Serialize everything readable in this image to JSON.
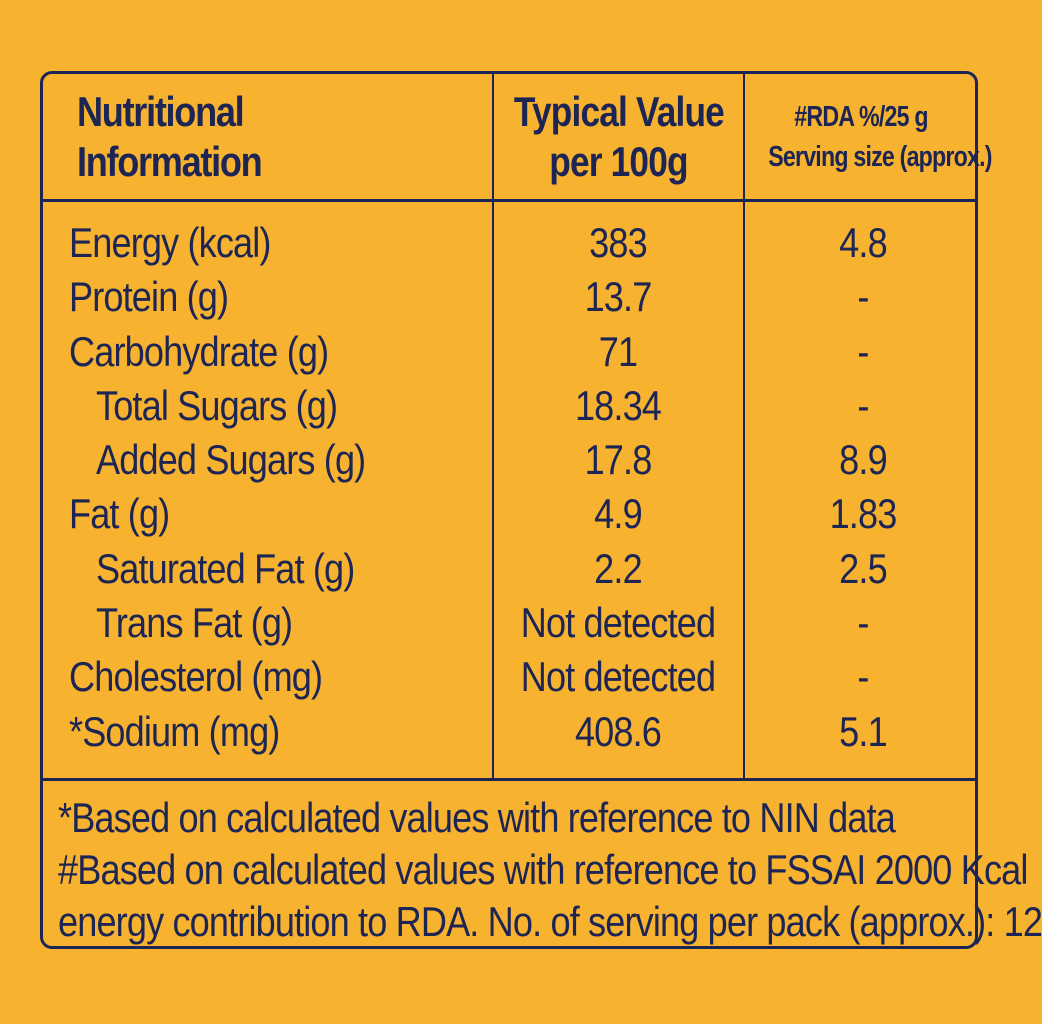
{
  "table": {
    "header": {
      "col1_line1": "Nutritional",
      "col1_line2": "Information",
      "col2_line1": "Typical Value",
      "col2_line2": "per 100g",
      "col3_line1": "#RDA %/25 g",
      "col3_line2": "Serving size (approx.)"
    },
    "rows": [
      {
        "name": "Energy (kcal)",
        "value": "383",
        "rda": "4.8",
        "indent": false
      },
      {
        "name": "Protein (g)",
        "value": "13.7",
        "rda": "-",
        "indent": false
      },
      {
        "name": "Carbohydrate (g)",
        "value": "71",
        "rda": "-",
        "indent": false
      },
      {
        "name": "Total Sugars (g)",
        "value": "18.34",
        "rda": "-",
        "indent": true
      },
      {
        "name": "Added Sugars (g)",
        "value": "17.8",
        "rda": "8.9",
        "indent": true
      },
      {
        "name": "Fat (g)",
        "value": "4.9",
        "rda": "1.83",
        "indent": false
      },
      {
        "name": "Saturated Fat (g)",
        "value": "2.2",
        "rda": "2.5",
        "indent": true
      },
      {
        "name": "Trans Fat (g)",
        "value": "Not detected",
        "rda": "-",
        "indent": true
      },
      {
        "name": "Cholesterol (mg)",
        "value": "Not detected",
        "rda": "-",
        "indent": false
      },
      {
        "name": "*Sodium (mg)",
        "value": "408.6",
        "rda": "5.1",
        "indent": false
      }
    ]
  },
  "footnotes": {
    "line1": "*Based on calculated values with reference to NIN data",
    "line2": "#Based on calculated values with reference to FSSAI 2000 Kcal",
    "line3": "energy contribution to RDA. No. of serving per pack (approx.): 12"
  },
  "colors": {
    "background": "#f7b230",
    "ink": "#1c2554"
  }
}
